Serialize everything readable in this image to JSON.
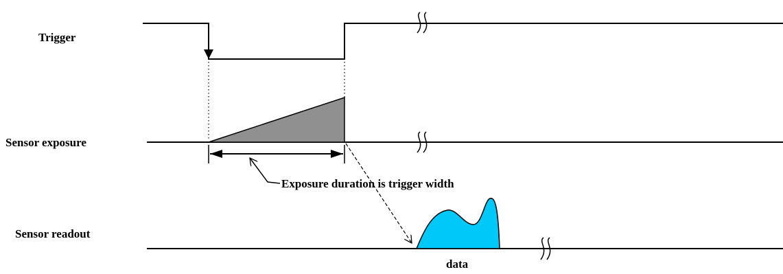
{
  "labels": {
    "trigger": "Trigger",
    "sensor_exposure": "Sensor exposure",
    "sensor_readout": "Sensor readout",
    "exposure_note": "Exposure duration is trigger width",
    "data": "data"
  },
  "colors": {
    "exposure_fill": "#909090",
    "readout_fill": "#00C8F8",
    "line": "#000000",
    "background": "#ffffff"
  }
}
